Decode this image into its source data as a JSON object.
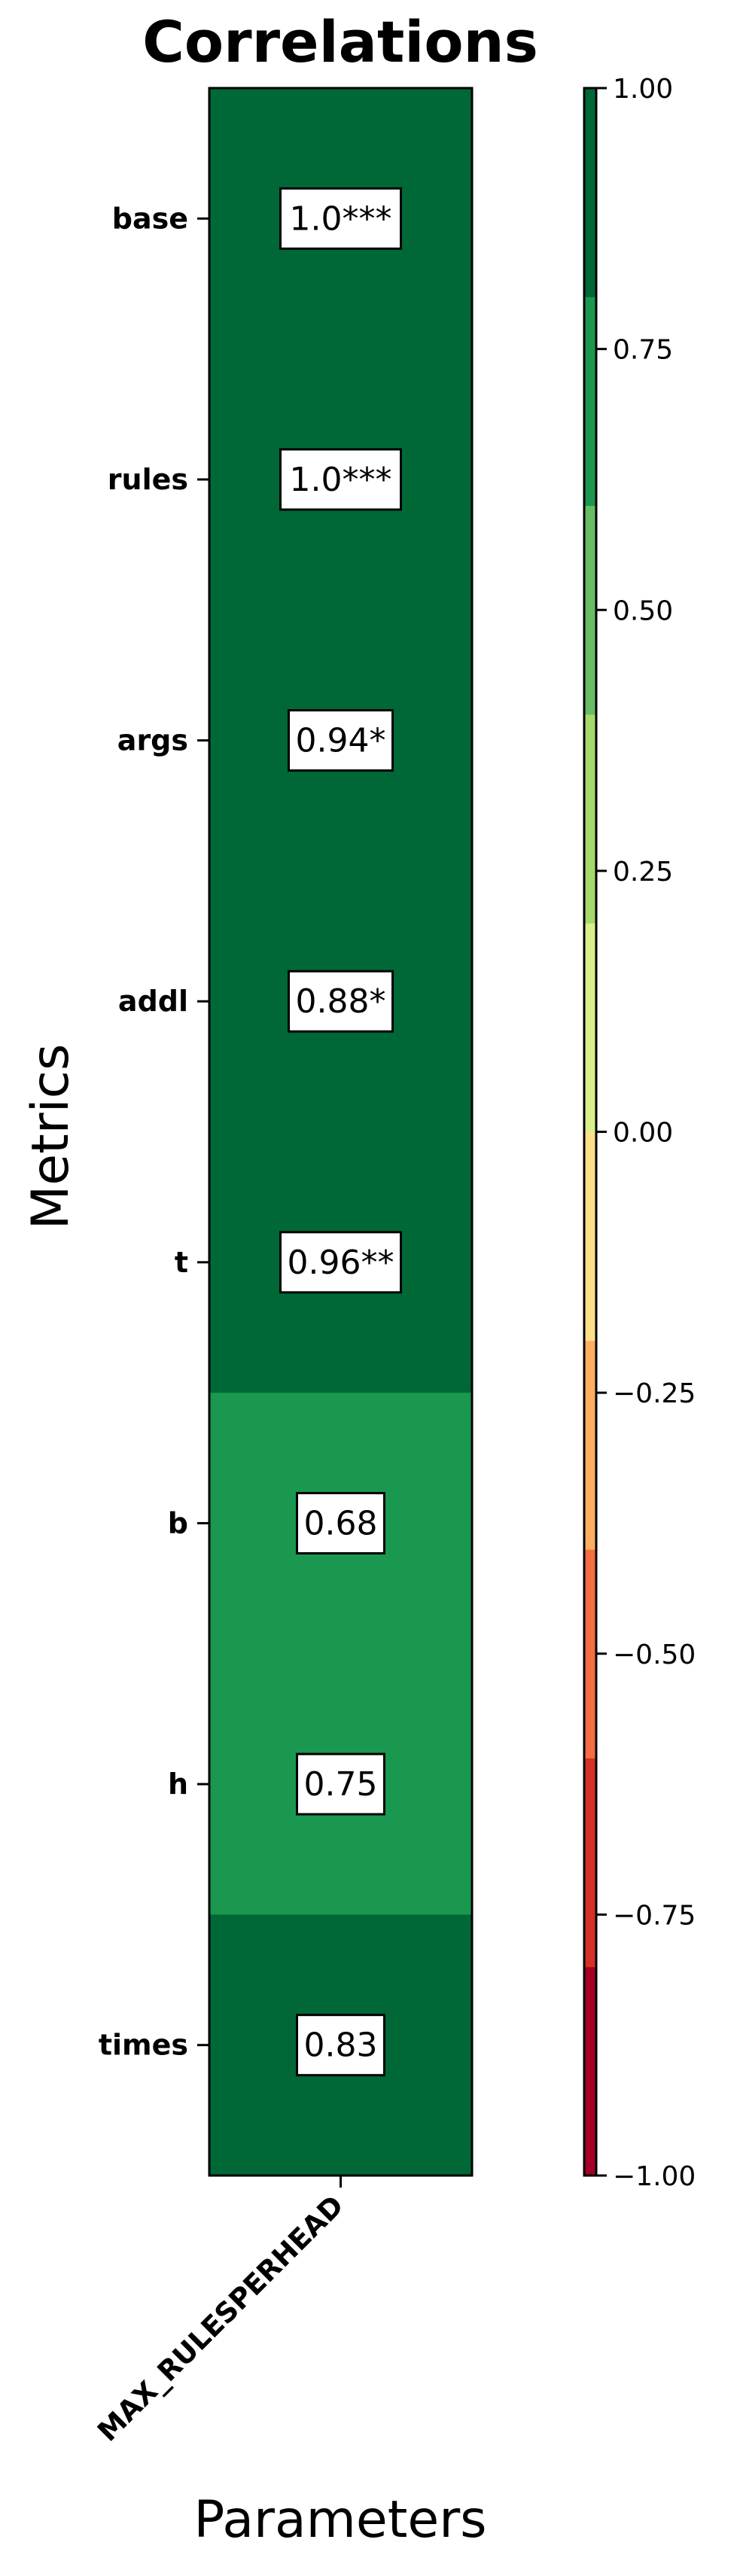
{
  "chart_data": {
    "type": "heatmap",
    "title": "Correlations",
    "xlabel": "Parameters",
    "ylabel": "Metrics",
    "columns": [
      "MAX_RULESPERHEAD"
    ],
    "rows": [
      "base",
      "rules",
      "args",
      "addl",
      "t",
      "b",
      "h",
      "times"
    ],
    "values": [
      [
        1.0
      ],
      [
        1.0
      ],
      [
        0.94
      ],
      [
        0.88
      ],
      [
        0.96
      ],
      [
        0.68
      ],
      [
        0.75
      ],
      [
        0.83
      ]
    ],
    "labels": [
      [
        "1.0***"
      ],
      [
        "1.0***"
      ],
      [
        "0.94*"
      ],
      [
        "0.88*"
      ],
      [
        "0.96**"
      ],
      [
        "0.68"
      ],
      [
        "0.75"
      ],
      [
        "0.83"
      ]
    ],
    "colorbar": {
      "vmin": -1.0,
      "vmax": 1.0,
      "ticks": [
        {
          "value": 1.0,
          "label": "1.00"
        },
        {
          "value": 0.75,
          "label": "0.75"
        },
        {
          "value": 0.5,
          "label": "0.50"
        },
        {
          "value": 0.25,
          "label": "0.25"
        },
        {
          "value": 0.0,
          "label": "0.00"
        },
        {
          "value": -0.25,
          "label": "−0.25"
        },
        {
          "value": -0.5,
          "label": "−0.50"
        },
        {
          "value": -0.75,
          "label": "−0.75"
        },
        {
          "value": -1.0,
          "label": "−1.00"
        }
      ],
      "bins": [
        "#a50026",
        "#d73027",
        "#f46d43",
        "#fdae61",
        "#fee08b",
        "#d9ef8b",
        "#a6d96a",
        "#66bd63",
        "#1a9850",
        "#006837"
      ]
    }
  }
}
